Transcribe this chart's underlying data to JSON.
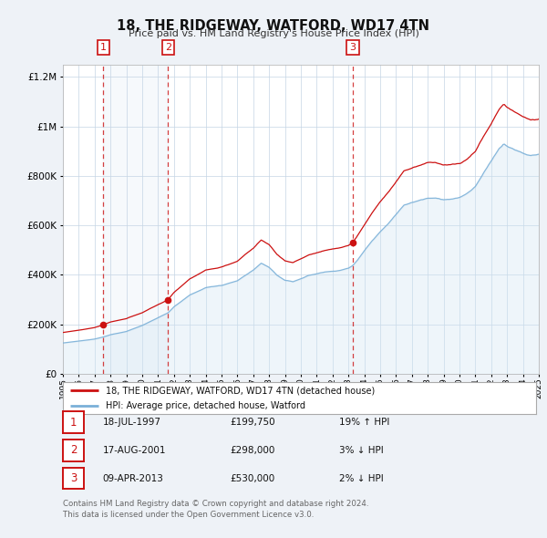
{
  "title": "18, THE RIDGEWAY, WATFORD, WD17 4TN",
  "subtitle": "Price paid vs. HM Land Registry's House Price Index (HPI)",
  "bg_color": "#eef2f7",
  "plot_bg_color": "#ffffff",
  "grid_color": "#c5d5e5",
  "hpi_line_color": "#7ab0d8",
  "hpi_fill_color": "#d0e4f2",
  "price_line_color": "#cc1111",
  "sale_dot_color": "#cc1111",
  "ylim_max": 1250000,
  "ytick_values": [
    0,
    200000,
    400000,
    600000,
    800000,
    1000000,
    1200000
  ],
  "ytick_labels": [
    "£0",
    "£200K",
    "£400K",
    "£600K",
    "£800K",
    "£1M",
    "£1.2M"
  ],
  "sales": [
    {
      "num": 1,
      "date": "18-JUL-1997",
      "price": 199750,
      "pct": "19%",
      "dir": "↑"
    },
    {
      "num": 2,
      "date": "17-AUG-2001",
      "price": 298000,
      "pct": "3%",
      "dir": "↓"
    },
    {
      "num": 3,
      "date": "09-APR-2013",
      "price": 530000,
      "pct": "2%",
      "dir": "↓"
    }
  ],
  "sale_years": [
    1997.54,
    2001.63,
    2013.27
  ],
  "legend_label_price": "18, THE RIDGEWAY, WATFORD, WD17 4TN (detached house)",
  "legend_label_hpi": "HPI: Average price, detached house, Watford",
  "footer": "Contains HM Land Registry data © Crown copyright and database right 2024.\nThis data is licensed under the Open Government Licence v3.0."
}
